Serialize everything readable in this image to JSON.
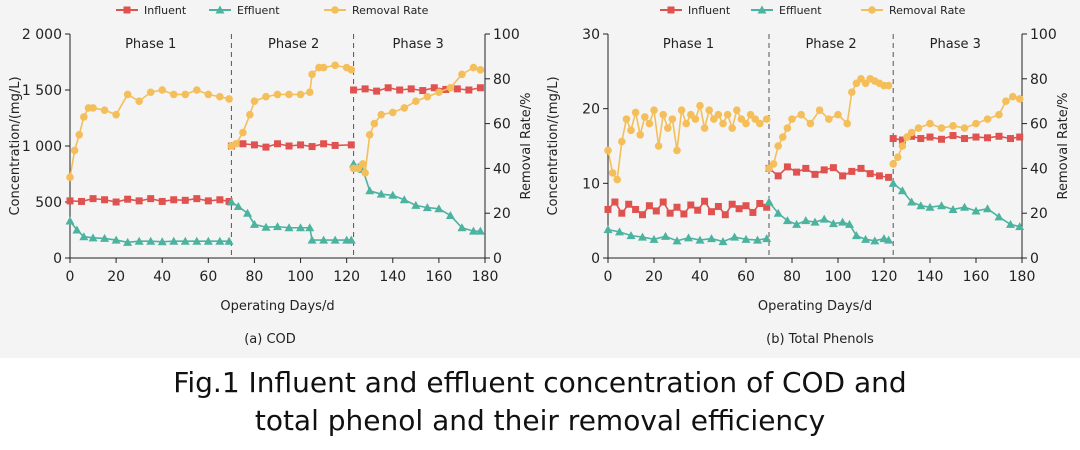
{
  "colors": {
    "influent": "#e0524f",
    "effluent": "#4bb39f",
    "removal": "#f4bf5a",
    "axis": "#222222",
    "divider": "#555555"
  },
  "caption": {
    "line1": "Fig.1 Influent and effluent concentration of COD and",
    "line2": "total phenol and their removal efficiency"
  },
  "chart_data": [
    {
      "type": "line",
      "panel_label": "(a) COD",
      "xlabel": "Operating Days/d",
      "ylabel": "Concentration/(mg/L)",
      "y2label": "Removal Rate/%",
      "xlim": [
        0,
        180
      ],
      "ylim": [
        0,
        2000
      ],
      "y2lim": [
        0,
        100
      ],
      "xticks": [
        0,
        20,
        40,
        60,
        80,
        100,
        120,
        140,
        160,
        180
      ],
      "yticks": [
        0,
        500,
        1000,
        1500,
        2000
      ],
      "ytick_labels": [
        "0",
        "500",
        "1 000",
        "1 500",
        "2 000"
      ],
      "y2ticks": [
        0,
        20,
        40,
        60,
        80,
        100
      ],
      "legend": {
        "position": "top",
        "entries": [
          "Influent",
          "Effluent",
          "Removal Rate"
        ]
      },
      "phase_boundaries": [
        70,
        123
      ],
      "phases": [
        {
          "label": "Phase 1",
          "x": 35
        },
        {
          "label": "Phase 2",
          "x": 97
        },
        {
          "label": "Phase 3",
          "x": 151
        }
      ],
      "series": [
        {
          "name": "Influent",
          "axis": "left",
          "marker": "square",
          "x": [
            0,
            5,
            10,
            15,
            20,
            25,
            30,
            35,
            40,
            45,
            50,
            55,
            60,
            65,
            69,
            70,
            75,
            80,
            85,
            90,
            95,
            100,
            105,
            110,
            115,
            122,
            123,
            128,
            133,
            138,
            143,
            148,
            153,
            158,
            163,
            168,
            173,
            178
          ],
          "y": [
            510,
            505,
            530,
            520,
            500,
            525,
            510,
            530,
            505,
            520,
            515,
            530,
            510,
            520,
            505,
            1000,
            1020,
            1010,
            990,
            1020,
            1000,
            1010,
            995,
            1020,
            1005,
            1010,
            1500,
            1510,
            1490,
            1520,
            1500,
            1510,
            1495,
            1520,
            1505,
            1510,
            1500,
            1520
          ]
        },
        {
          "name": "Effluent",
          "axis": "left",
          "marker": "triangle",
          "x": [
            0,
            3,
            6,
            10,
            15,
            20,
            25,
            30,
            35,
            40,
            45,
            50,
            55,
            60,
            65,
            69,
            70,
            73,
            77,
            80,
            85,
            90,
            95,
            100,
            104,
            105,
            110,
            115,
            120,
            122,
            123,
            125,
            127,
            130,
            135,
            140,
            145,
            150,
            155,
            160,
            165,
            170,
            175,
            178
          ],
          "y": [
            330,
            250,
            190,
            180,
            175,
            160,
            140,
            150,
            150,
            145,
            150,
            150,
            150,
            150,
            150,
            150,
            500,
            460,
            400,
            300,
            275,
            280,
            270,
            270,
            270,
            160,
            160,
            160,
            160,
            160,
            840,
            810,
            790,
            600,
            570,
            560,
            520,
            470,
            450,
            440,
            380,
            270,
            240,
            240
          ]
        },
        {
          "name": "Removal Rate",
          "axis": "right",
          "marker": "circle",
          "x": [
            0,
            2,
            4,
            6,
            8,
            10,
            15,
            20,
            25,
            30,
            35,
            40,
            45,
            50,
            55,
            60,
            65,
            69,
            70,
            72,
            75,
            78,
            80,
            85,
            90,
            95,
            100,
            104,
            105,
            108,
            110,
            115,
            120,
            122,
            123,
            125,
            127,
            128,
            130,
            132,
            135,
            140,
            145,
            150,
            155,
            160,
            165,
            170,
            175,
            178
          ],
          "y": [
            36,
            48,
            55,
            63,
            67,
            67,
            66,
            64,
            73,
            70,
            74,
            75,
            73,
            73,
            75,
            73,
            72,
            71,
            50,
            51,
            56,
            64,
            70,
            72,
            73,
            73,
            73,
            74,
            82,
            85,
            85,
            86,
            85,
            84,
            40,
            40,
            42,
            38,
            55,
            60,
            64,
            65,
            67,
            70,
            72,
            74,
            76,
            82,
            85,
            84
          ]
        }
      ]
    },
    {
      "type": "line",
      "panel_label": "(b) Total Phenols",
      "xlabel": "Operating Days/d",
      "ylabel": "Concentration/(mg/L)",
      "y2label": "Removal Rate/%",
      "xlim": [
        0,
        180
      ],
      "ylim": [
        0,
        30
      ],
      "y2lim": [
        0,
        100
      ],
      "xticks": [
        0,
        20,
        40,
        60,
        80,
        100,
        120,
        140,
        160,
        180
      ],
      "yticks": [
        0,
        10,
        20,
        30
      ],
      "ytick_labels": [
        "0",
        "10",
        "20",
        "30"
      ],
      "y2ticks": [
        0,
        20,
        40,
        60,
        80,
        100
      ],
      "legend": {
        "position": "top",
        "entries": [
          "Influent",
          "Effluent",
          "Removal Rate"
        ]
      },
      "phase_boundaries": [
        70,
        124
      ],
      "phases": [
        {
          "label": "Phase 1",
          "x": 35
        },
        {
          "label": "Phase 2",
          "x": 97
        },
        {
          "label": "Phase 3",
          "x": 151
        }
      ],
      "series": [
        {
          "name": "Influent",
          "axis": "left",
          "marker": "square",
          "x": [
            0,
            3,
            6,
            9,
            12,
            15,
            18,
            21,
            24,
            27,
            30,
            33,
            36,
            39,
            42,
            45,
            48,
            51,
            54,
            57,
            60,
            63,
            66,
            69,
            70,
            74,
            78,
            82,
            86,
            90,
            94,
            98,
            102,
            106,
            110,
            114,
            118,
            122,
            124,
            128,
            132,
            136,
            140,
            145,
            150,
            155,
            160,
            165,
            170,
            175,
            179
          ],
          "y": [
            6.5,
            7.5,
            6.0,
            7.2,
            6.5,
            5.8,
            7.0,
            6.3,
            7.5,
            6.0,
            6.8,
            5.9,
            7.1,
            6.4,
            7.6,
            6.2,
            6.9,
            5.8,
            7.2,
            6.6,
            7.0,
            6.1,
            7.3,
            6.8,
            12.0,
            11.0,
            12.2,
            11.5,
            12.0,
            11.2,
            11.8,
            12.1,
            11.0,
            11.6,
            12.0,
            11.3,
            11.0,
            10.8,
            16.0,
            15.8,
            16.3,
            16.0,
            16.2,
            15.9,
            16.4,
            16.0,
            16.2,
            16.1,
            16.3,
            16.0,
            16.2
          ]
        },
        {
          "name": "Effluent",
          "axis": "left",
          "marker": "triangle",
          "x": [
            0,
            5,
            10,
            15,
            20,
            25,
            30,
            35,
            40,
            45,
            50,
            55,
            60,
            65,
            69,
            70,
            74,
            78,
            82,
            86,
            90,
            94,
            98,
            102,
            105,
            108,
            112,
            116,
            120,
            122,
            124,
            128,
            132,
            136,
            140,
            145,
            150,
            155,
            160,
            165,
            170,
            175,
            179
          ],
          "y": [
            3.8,
            3.5,
            3.0,
            2.8,
            2.5,
            2.9,
            2.3,
            2.7,
            2.4,
            2.6,
            2.2,
            2.8,
            2.5,
            2.4,
            2.6,
            7.5,
            6.0,
            5.0,
            4.5,
            5.0,
            4.8,
            5.2,
            4.6,
            4.8,
            4.5,
            3.0,
            2.5,
            2.3,
            2.6,
            2.4,
            10.0,
            9.0,
            7.5,
            7.0,
            6.8,
            7.0,
            6.5,
            6.8,
            6.3,
            6.6,
            5.5,
            4.5,
            4.2
          ]
        },
        {
          "name": "Removal Rate",
          "axis": "right",
          "marker": "circle",
          "x": [
            0,
            2,
            4,
            6,
            8,
            10,
            12,
            14,
            16,
            18,
            20,
            22,
            24,
            26,
            28,
            30,
            32,
            34,
            36,
            38,
            40,
            42,
            44,
            46,
            48,
            50,
            52,
            54,
            56,
            58,
            60,
            62,
            64,
            66,
            69,
            70,
            72,
            74,
            76,
            78,
            80,
            84,
            88,
            92,
            96,
            100,
            104,
            106,
            108,
            110,
            112,
            114,
            116,
            118,
            120,
            122,
            124,
            126,
            128,
            130,
            132,
            135,
            140,
            145,
            150,
            155,
            160,
            165,
            170,
            173,
            176,
            179
          ],
          "y": [
            48,
            38,
            35,
            52,
            62,
            57,
            65,
            55,
            63,
            60,
            66,
            50,
            64,
            58,
            62,
            48,
            66,
            60,
            64,
            62,
            68,
            58,
            66,
            62,
            64,
            60,
            64,
            58,
            66,
            62,
            60,
            64,
            62,
            60,
            62,
            40,
            42,
            50,
            54,
            58,
            62,
            64,
            60,
            66,
            62,
            64,
            60,
            74,
            78,
            80,
            78,
            80,
            79,
            78,
            77,
            77,
            42,
            45,
            50,
            54,
            56,
            58,
            60,
            58,
            59,
            58,
            60,
            62,
            64,
            70,
            72,
            71
          ]
        }
      ]
    }
  ]
}
